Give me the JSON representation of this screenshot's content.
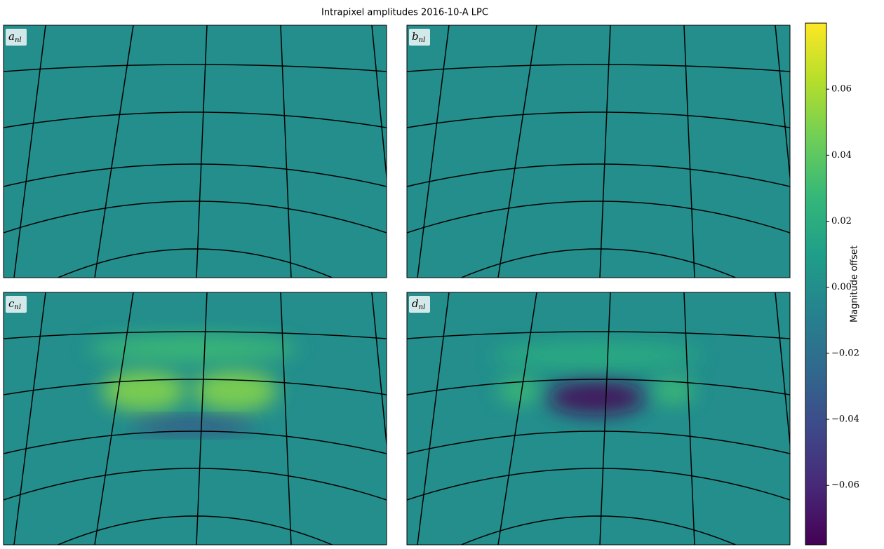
{
  "chart_data": {
    "type": "heatmap",
    "title": "Intrapixel amplitudes 2016-10-A LPC",
    "panels": [
      {
        "label": "a",
        "subscript": "nl"
      },
      {
        "label": "b",
        "subscript": "nl"
      },
      {
        "label": "c",
        "subscript": "nl"
      },
      {
        "label": "d",
        "subscript": "nl"
      }
    ],
    "colorbar": {
      "label": "Magnitude offset",
      "colormap": "viridis",
      "ylim": [
        -0.078,
        0.08
      ],
      "yticks": [
        {
          "value": -0.06,
          "label": "−0.06"
        },
        {
          "value": -0.04,
          "label": "−0.04"
        },
        {
          "value": -0.02,
          "label": "−0.02"
        },
        {
          "value": 0,
          "label": "0.00"
        },
        {
          "value": 0.02,
          "label": "0.02"
        },
        {
          "value": 0.04,
          "label": "0.04"
        },
        {
          "value": 0.06,
          "label": "0.06"
        }
      ]
    }
  }
}
